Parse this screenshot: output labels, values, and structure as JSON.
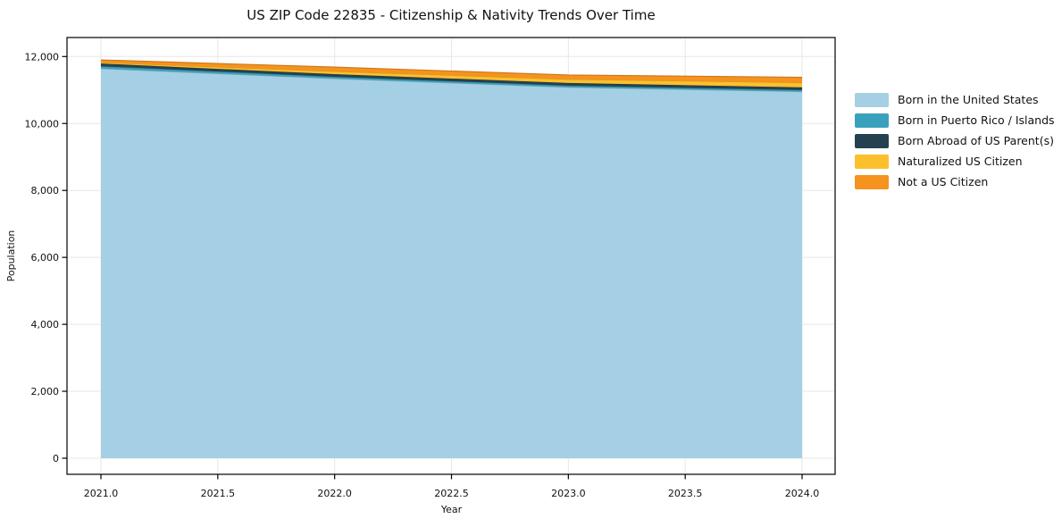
{
  "chart_data": {
    "type": "area",
    "stacked": true,
    "title": "US ZIP Code 22835 - Citizenship & Nativity Trends Over Time",
    "xlabel": "Year",
    "ylabel": "Population",
    "x": [
      2021,
      2022,
      2023,
      2024
    ],
    "series": [
      {
        "name": "Born in the United States",
        "color": "#a5cfe4",
        "values": [
          11640,
          11340,
          11080,
          10950
        ]
      },
      {
        "name": "Born in Puerto Rico / Islands",
        "color": "#3aa1bd",
        "values": [
          70,
          55,
          50,
          50
        ]
      },
      {
        "name": "Born Abroad of US Parent(s)",
        "color": "#25414f",
        "values": [
          80,
          80,
          80,
          80
        ]
      },
      {
        "name": "Naturalized US Citizen",
        "color": "#fcc02d",
        "values": [
          30,
          80,
          110,
          140
        ]
      },
      {
        "name": "Not a US Citizen",
        "color": "#f6921e",
        "values": [
          80,
          130,
          130,
          160
        ]
      }
    ],
    "x_ticks": {
      "values": [
        2021.0,
        2021.5,
        2022.0,
        2022.5,
        2023.0,
        2023.5,
        2024.0
      ],
      "labels": [
        "2021.0",
        "2021.5",
        "2022.0",
        "2022.5",
        "2023.0",
        "2023.5",
        "2024.0"
      ]
    },
    "y_ticks": {
      "values": [
        0,
        2000,
        4000,
        6000,
        8000,
        10000,
        12000
      ],
      "labels": [
        "0",
        "2,000",
        "4,000",
        "6,000",
        "8,000",
        "10,000",
        "12,000"
      ]
    },
    "xlim": [
      2020.85,
      2024.15
    ],
    "ylim": [
      0,
      12000
    ],
    "grid": true,
    "legend_position": "right",
    "colors": {
      "grid": "#e7e7e7",
      "spine": "#000000",
      "text": "#111111"
    }
  }
}
